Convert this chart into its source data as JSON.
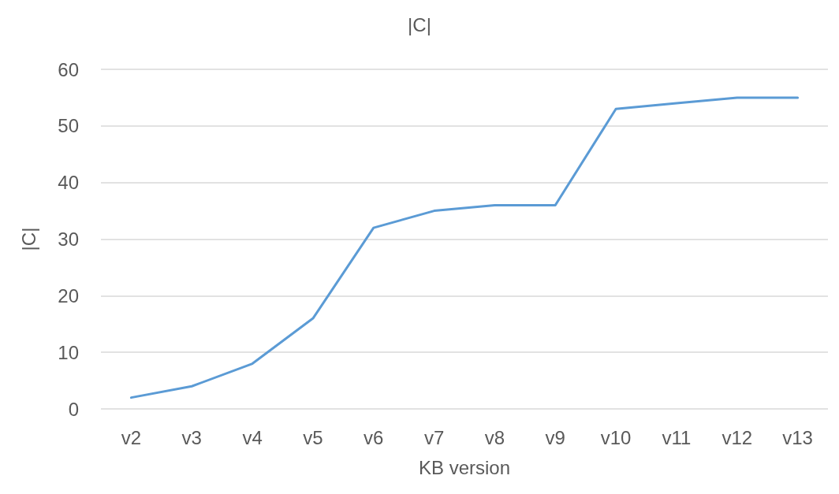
{
  "chart_data": {
    "type": "line",
    "title": "|C|",
    "xlabel": "KB version",
    "ylabel": "|C|",
    "categories": [
      "v2",
      "v3",
      "v4",
      "v5",
      "v6",
      "v7",
      "v8",
      "v9",
      "v10",
      "v11",
      "v12",
      "v13"
    ],
    "series": [
      {
        "color": "#5b9bd5",
        "values": [
          2,
          4,
          8,
          16,
          32,
          35,
          36,
          36,
          53,
          54,
          55,
          55
        ]
      }
    ],
    "ylim": [
      0,
      60
    ],
    "yticks": [
      0,
      10,
      20,
      30,
      40,
      50,
      60
    ],
    "grid": "y",
    "marker": "none",
    "line_style": "solid"
  }
}
